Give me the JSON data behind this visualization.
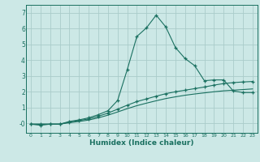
{
  "title": "",
  "xlabel": "Humidex (Indice chaleur)",
  "background_color": "#cce8e6",
  "grid_color": "#aaccca",
  "line_color": "#1a7060",
  "xlim": [
    -0.5,
    23.5
  ],
  "ylim": [
    -0.6,
    7.5
  ],
  "yticks": [
    0,
    1,
    2,
    3,
    4,
    5,
    6,
    7
  ],
  "ytick_labels": [
    "-0",
    "1",
    "2",
    "3",
    "4",
    "5",
    "6",
    "7"
  ],
  "xticks": [
    0,
    1,
    2,
    3,
    4,
    5,
    6,
    7,
    8,
    9,
    10,
    11,
    12,
    13,
    14,
    15,
    16,
    17,
    18,
    19,
    20,
    21,
    22,
    23
  ],
  "series1_x": [
    0,
    1,
    2,
    3,
    4,
    5,
    6,
    7,
    8,
    9,
    10,
    11,
    12,
    13,
    14,
    15,
    16,
    17,
    18,
    19,
    20,
    21,
    22,
    23
  ],
  "series1_y": [
    -0.05,
    -0.12,
    -0.05,
    -0.05,
    0.12,
    0.22,
    0.35,
    0.55,
    0.8,
    1.45,
    3.4,
    5.5,
    6.05,
    6.85,
    6.1,
    4.8,
    4.1,
    3.65,
    2.7,
    2.75,
    2.75,
    2.05,
    1.95,
    1.95
  ],
  "series2_x": [
    0,
    1,
    2,
    3,
    4,
    5,
    6,
    7,
    8,
    9,
    10,
    11,
    12,
    13,
    14,
    15,
    16,
    17,
    18,
    19,
    20,
    21,
    22,
    23
  ],
  "series2_y": [
    -0.05,
    -0.05,
    -0.05,
    -0.05,
    0.08,
    0.18,
    0.28,
    0.45,
    0.65,
    0.9,
    1.15,
    1.38,
    1.55,
    1.72,
    1.88,
    2.0,
    2.1,
    2.2,
    2.3,
    2.42,
    2.52,
    2.58,
    2.62,
    2.65
  ],
  "series3_x": [
    0,
    1,
    2,
    3,
    4,
    5,
    6,
    7,
    8,
    9,
    10,
    11,
    12,
    13,
    14,
    15,
    16,
    17,
    18,
    19,
    20,
    21,
    22,
    23
  ],
  "series3_y": [
    -0.05,
    -0.05,
    -0.05,
    -0.05,
    0.04,
    0.12,
    0.21,
    0.35,
    0.52,
    0.72,
    0.93,
    1.12,
    1.28,
    1.43,
    1.57,
    1.68,
    1.78,
    1.86,
    1.93,
    2.0,
    2.06,
    2.1,
    2.14,
    2.18
  ],
  "marker": "+",
  "markersize": 3.5,
  "linewidth": 0.8
}
